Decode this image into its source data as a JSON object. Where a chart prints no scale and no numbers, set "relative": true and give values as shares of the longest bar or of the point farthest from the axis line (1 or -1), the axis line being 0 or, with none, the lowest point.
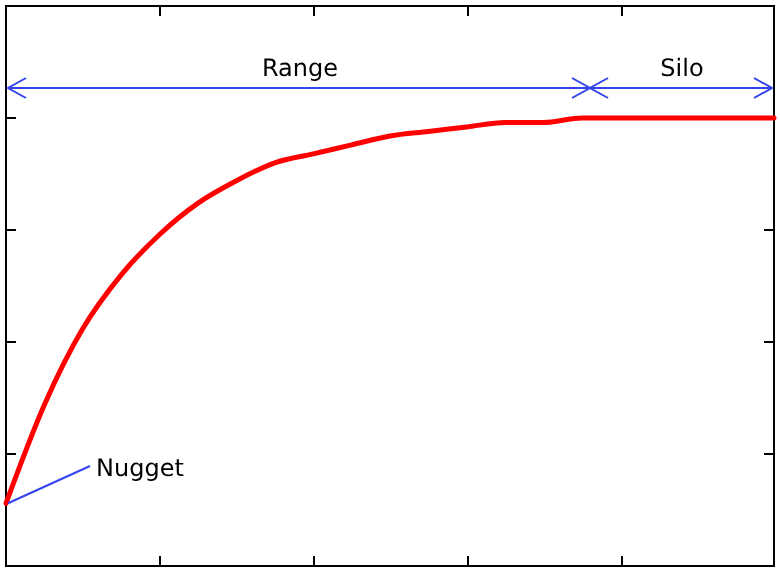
{
  "chart_data": {
    "type": "line",
    "relative": true,
    "categories": [
      null,
      null,
      null,
      null,
      null,
      null,
      null,
      null,
      null,
      null,
      null,
      null,
      null,
      null,
      null,
      null,
      null,
      null,
      null,
      null,
      null
    ],
    "series": [
      {
        "color": "#ff0000",
        "values": [
          0.14,
          0.36,
          0.53,
          0.65,
          0.74,
          0.81,
          0.86,
          0.9,
          0.92,
          0.94,
          0.96,
          0.97,
          0.98,
          0.99,
          0.99,
          1,
          1,
          1,
          1,
          1,
          1
        ]
      }
    ],
    "annotations": [
      "Range",
      "Silo",
      "Nugget"
    ],
    "grid": false
  }
}
